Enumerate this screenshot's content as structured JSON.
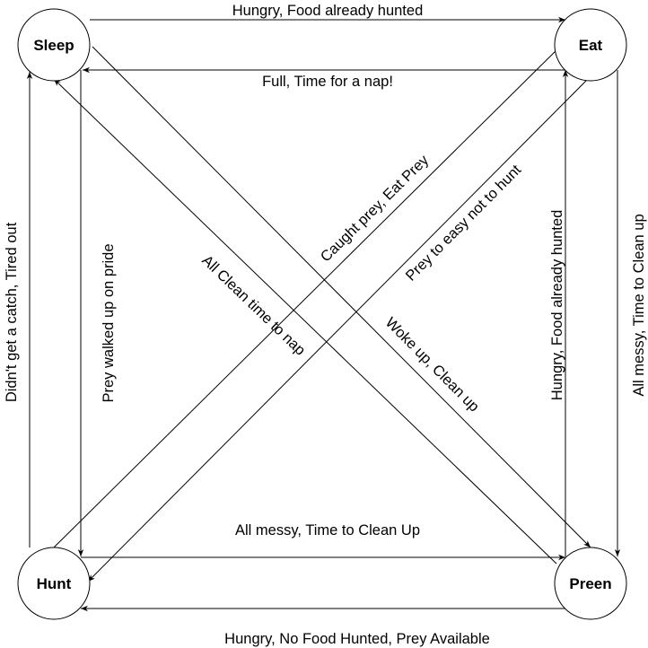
{
  "states": {
    "sleep": "Sleep",
    "eat": "Eat",
    "hunt": "Hunt",
    "preen": "Preen"
  },
  "transitions": {
    "sleep_to_eat": "Hungry, Food already hunted",
    "eat_to_sleep": "Full, Time for a nap!",
    "hunt_to_sleep": "Didn't get a catch,  Tired out",
    "sleep_to_hunt": "Prey walked up on pride",
    "hunt_to_eat": "Caught prey, Eat Prey",
    "preen_to_sleep": "All Clean time to nap",
    "eat_to_hunt": "Prey to easy not to hunt",
    "sleep_to_preen": "Woke up, Clean up",
    "preen_to_eat": "Hungry, Food already hunted",
    "eat_to_preen": "All messy, Time to Clean up",
    "hunt_to_preen": "All messy, Time to Clean Up",
    "preen_to_hunt": "Hungry, No Food Hunted, Prey Available"
  }
}
